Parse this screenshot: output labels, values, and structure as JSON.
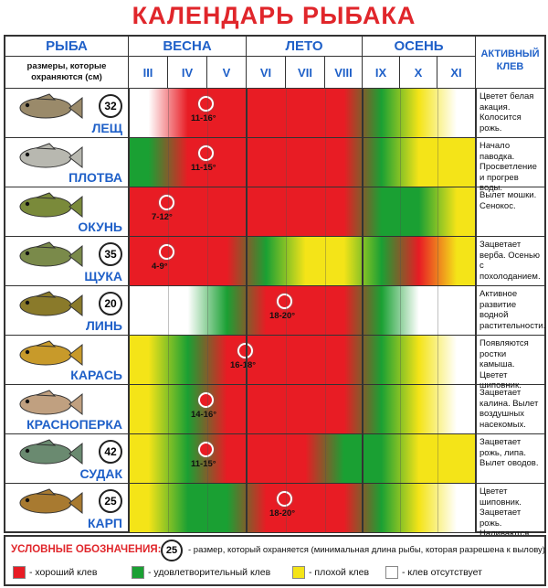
{
  "title": "КАЛЕНДАРЬ РЫБАКА",
  "header": {
    "fish": "РЫБА",
    "sizes_note": "размеры, которые охраняются (см)",
    "seasons": [
      "ВЕСНА",
      "ЛЕТО",
      "ОСЕНЬ"
    ],
    "months": [
      "III",
      "IV",
      "V",
      "VI",
      "VII",
      "VIII",
      "IX",
      "X",
      "XI"
    ],
    "active_bite": "АКТИВНЫЙ КЛЕВ"
  },
  "colors": {
    "good": "#e81c24",
    "ok": "#1aa033",
    "poor": "#f4e418",
    "none": "#ffffff",
    "accent": "#1f60c8",
    "title": "#e0262b"
  },
  "rows": [
    {
      "name": "ЛЕЩ",
      "size": "32",
      "temp": "11-16°",
      "cells": [
        "none",
        "good",
        "good",
        "good",
        "good",
        "good",
        "ok",
        "poor",
        "none"
      ],
      "note": "Цветет белая акация. Колосится рожь."
    },
    {
      "name": "ПЛОТВА",
      "size": "",
      "temp": "11-15°",
      "cells": [
        "ok",
        "good",
        "good",
        "good",
        "good",
        "good",
        "ok",
        "poor",
        "poor"
      ],
      "note": "Начало паводка. Просветление и прогрев воды."
    },
    {
      "name": "ОКУНЬ",
      "size": "",
      "temp": "7-12°",
      "cells": [
        "good",
        "good",
        "good",
        "good",
        "good",
        "good",
        "ok",
        "ok",
        "poor"
      ],
      "note": "Вылет мошки. Сенокос."
    },
    {
      "name": "ЩУКА",
      "size": "35",
      "temp": "4-9°",
      "cells": [
        "good",
        "good",
        "good",
        "ok",
        "poor",
        "poor",
        "ok",
        "good",
        "poor"
      ],
      "note": "Зацветает верба. Осенью с похолоданием."
    },
    {
      "name": "ЛИНЬ",
      "size": "20",
      "temp": "18-20°",
      "cells": [
        "none",
        "none",
        "ok",
        "good",
        "good",
        "good",
        "ok",
        "none",
        "none"
      ],
      "note": "Активное развитие водной растительности."
    },
    {
      "name": "КАРАСЬ",
      "size": "",
      "temp": "16-18°",
      "cells": [
        "poor",
        "ok",
        "good",
        "good",
        "good",
        "good",
        "ok",
        "poor",
        "none"
      ],
      "note": "Появляются ростки камыша. Цветет шиповник."
    },
    {
      "name": "КРАСНОПЕРКА",
      "size": "",
      "temp": "14-16°",
      "cells": [
        "poor",
        "ok",
        "good",
        "good",
        "good",
        "good",
        "ok",
        "poor",
        "none"
      ],
      "note": "Зацветает калина. Вылет воздушных насекомых."
    },
    {
      "name": "СУДАК",
      "size": "42",
      "temp": "11-15°",
      "cells": [
        "poor",
        "ok",
        "good",
        "good",
        "good",
        "ok",
        "ok",
        "poor",
        "poor"
      ],
      "note": "Зацветает рожь, липа. Вылет оводов."
    },
    {
      "name": "КАРП",
      "size": "25",
      "temp": "18-20°",
      "cells": [
        "poor",
        "ok",
        "ok",
        "good",
        "good",
        "good",
        "ok",
        "poor",
        "none"
      ],
      "note": "Цветет шиповник. Зацветает рожь. Наливаются абрикосы."
    }
  ],
  "temp_month": [
    1,
    1,
    0,
    0,
    3,
    2,
    1,
    1,
    3
  ],
  "legend": {
    "title": "УСЛОВНЫЕ ОБОЗНАЧЕНИЯ:",
    "size_example": "25",
    "size_text": "- размер, который охраняется (минимальная длина рыбы, которая разрешена к вылову)",
    "good": "- хороший клев",
    "ok": "- удовлетворительный клев",
    "poor": "- плохой клев",
    "none": "- клев отсутствует"
  }
}
